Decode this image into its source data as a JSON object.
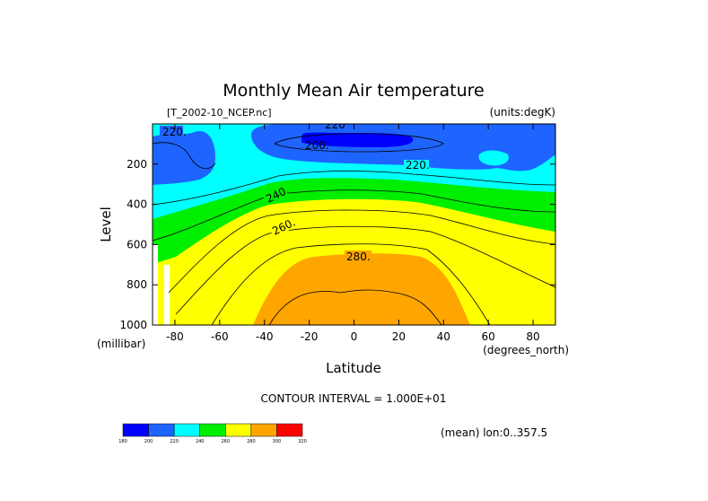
{
  "chart_data": {
    "type": "contour",
    "title": "Monthly Mean Air temperature",
    "file_label": "[T_2002-10_NCEP.nc]",
    "units_label": "(units:degK)",
    "xlabel": "Latitude",
    "ylabel": "Level",
    "x_units": "(degrees_north)",
    "y_units": "(millibar)",
    "xlim": [
      -90,
      90
    ],
    "ylim": [
      0,
      1000
    ],
    "x_ticks": [
      "-80",
      "-60",
      "-40",
      "-20",
      "0",
      "20",
      "40",
      "60",
      "80"
    ],
    "x_tick_values": [
      -80,
      -60,
      -40,
      -20,
      0,
      20,
      40,
      60,
      80
    ],
    "y_ticks": [
      "200",
      "400",
      "600",
      "800",
      "1000"
    ],
    "y_tick_values": [
      200,
      400,
      600,
      800,
      1000
    ],
    "contour_labels": [
      {
        "text": "220.",
        "lat": -81,
        "lev": 40
      },
      {
        "text": "200.",
        "lat": -16,
        "lev": 105
      },
      {
        "text": "220",
        "lat": -7,
        "lev": 5
      },
      {
        "text": "220.",
        "lat": 28,
        "lev": 200
      },
      {
        "text": "240.",
        "lat": -34,
        "lev": 370
      },
      {
        "text": "260.",
        "lat": -30,
        "lev": 500
      },
      {
        "text": "280.",
        "lat": 2,
        "lev": 650
      }
    ],
    "contour_interval_label": "CONTOUR INTERVAL = 1.000E+01",
    "statistic_label": "(mean) lon:0..357.5",
    "colorbar": {
      "levels": [
        "180",
        "200",
        "220",
        "240",
        "260",
        "280",
        "300",
        "320"
      ],
      "colors": [
        "#0000ff",
        "#1e64ff",
        "#00ffff",
        "#00ee00",
        "#ffff00",
        "#ffa500",
        "#ff0000"
      ]
    },
    "bands": [
      {
        "range": "200-220",
        "color": "#1e64ff"
      },
      {
        "range": "220-240",
        "color": "#00ffff"
      },
      {
        "range": "240-260",
        "color": "#00ee00"
      },
      {
        "range": "260-280",
        "color": "#ffff00"
      },
      {
        "range": "280-300",
        "color": "#ffa500"
      },
      {
        "range": "180-200",
        "color": "#0000ff"
      }
    ]
  }
}
